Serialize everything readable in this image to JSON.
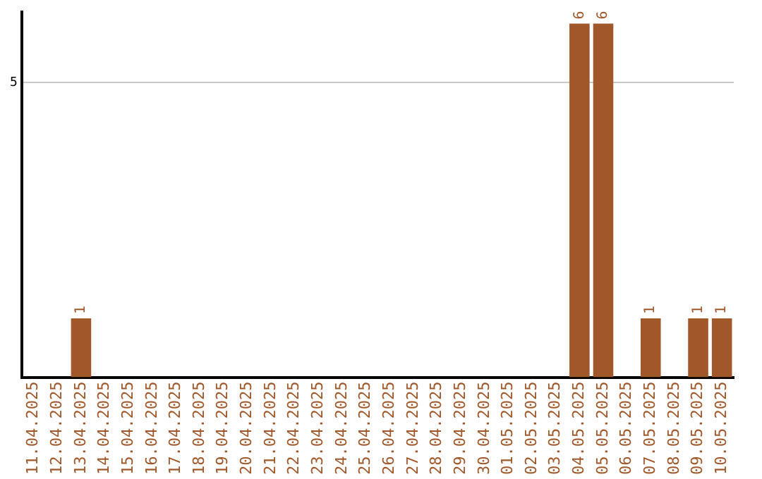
{
  "chart_data": {
    "type": "bar",
    "categories": [
      "11.04.2025",
      "12.04.2025",
      "13.04.2025",
      "14.04.2025",
      "15.04.2025",
      "16.04.2025",
      "17.04.2025",
      "18.04.2025",
      "19.04.2025",
      "20.04.2025",
      "21.04.2025",
      "22.04.2025",
      "23.04.2025",
      "24.04.2025",
      "25.04.2025",
      "26.04.2025",
      "27.04.2025",
      "28.04.2025",
      "29.04.2025",
      "30.04.2025",
      "01.05.2025",
      "02.05.2025",
      "03.05.2025",
      "04.05.2025",
      "05.05.2025",
      "06.05.2025",
      "07.05.2025",
      "08.05.2025",
      "09.05.2025",
      "10.05.2025"
    ],
    "values": [
      0,
      0,
      1,
      0,
      0,
      0,
      0,
      0,
      0,
      0,
      0,
      0,
      0,
      0,
      0,
      0,
      0,
      0,
      0,
      0,
      0,
      0,
      0,
      6,
      6,
      0,
      1,
      0,
      1,
      1
    ],
    "value_labels": [
      null,
      null,
      "1",
      null,
      null,
      null,
      null,
      null,
      null,
      null,
      null,
      null,
      null,
      null,
      null,
      null,
      null,
      null,
      null,
      null,
      null,
      null,
      null,
      "6",
      "6",
      null,
      "1",
      null,
      "1",
      "1"
    ],
    "color": "#a0582a",
    "ylim": [
      0,
      6.2
    ],
    "yticks": [
      5
    ],
    "grid": "y",
    "legend": false
  }
}
